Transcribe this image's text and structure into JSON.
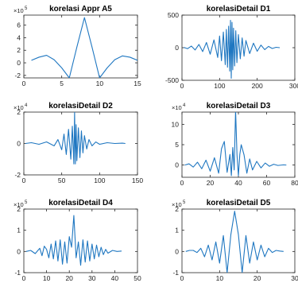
{
  "chart_data": [
    {
      "type": "line",
      "title": "korelasi Appr A5",
      "multiplier": "×10",
      "exponent": "5",
      "xlim": [
        0,
        15
      ],
      "ylim": [
        -2.4,
        7.6
      ],
      "xticks": [
        0,
        5,
        10,
        15
      ],
      "yticks": [
        -2,
        0,
        2,
        4,
        6
      ],
      "series": [
        {
          "x": [
            1,
            2,
            3,
            4,
            5,
            6,
            7,
            8,
            9,
            10,
            11,
            12,
            13,
            14,
            15
          ],
          "y": [
            0.4,
            0.9,
            1.2,
            0.5,
            -0.8,
            -2.4,
            2.5,
            7.2,
            2.5,
            -2.4,
            -0.8,
            0.5,
            1.1,
            0.9,
            0.4
          ]
        }
      ]
    },
    {
      "type": "line",
      "title": "korelasiDetail D1",
      "multiplier": "",
      "exponent": "",
      "xlim": [
        0,
        300
      ],
      "ylim": [
        -500,
        500
      ],
      "xticks": [
        0,
        100,
        200,
        300
      ],
      "yticks": [
        -500,
        0,
        500
      ],
      "series": [
        {
          "x": [
            5,
            15,
            25,
            35,
            45,
            55,
            65,
            75,
            85,
            95,
            100,
            105,
            110,
            115,
            118,
            121,
            124,
            127,
            129,
            131,
            133,
            135,
            137,
            140,
            143,
            146,
            150,
            155,
            160,
            165,
            170,
            180,
            190,
            200,
            210,
            220,
            230,
            240,
            250,
            260
          ],
          "y": [
            5,
            -15,
            25,
            -35,
            50,
            -60,
            80,
            -100,
            120,
            -150,
            180,
            -200,
            240,
            -260,
            280,
            -300,
            330,
            -360,
            420,
            -470,
            390,
            -340,
            300,
            -280,
            260,
            -230,
            200,
            -170,
            150,
            -130,
            110,
            -90,
            70,
            -55,
            40,
            -30,
            20,
            -12,
            6,
            0
          ]
        }
      ]
    },
    {
      "type": "line",
      "title": "korelasiDetail D2",
      "multiplier": "×10",
      "exponent": "4",
      "xlim": [
        0,
        150
      ],
      "ylim": [
        -2,
        2
      ],
      "xticks": [
        0,
        50,
        100,
        150
      ],
      "yticks": [
        -2,
        0,
        2
      ],
      "series": [
        {
          "x": [
            2,
            10,
            20,
            30,
            40,
            45,
            50,
            53,
            56,
            59,
            62,
            64,
            66,
            67,
            68,
            69,
            70,
            72,
            74,
            76,
            78,
            80,
            83,
            86,
            90,
            95,
            100,
            110,
            120,
            130,
            134
          ],
          "y": [
            0,
            0.05,
            -0.05,
            0.1,
            -0.15,
            0.25,
            -0.4,
            0.6,
            -0.7,
            0.9,
            -1.0,
            1.1,
            -1.3,
            2.0,
            -1.3,
            1.2,
            -1.1,
            1.0,
            -0.9,
            0.8,
            -0.6,
            0.5,
            -0.35,
            0.25,
            -0.15,
            0.1,
            -0.05,
            0.05,
            0,
            0.02,
            0
          ]
        }
      ]
    },
    {
      "type": "line",
      "title": "korelasiDetail D3",
      "multiplier": "×10",
      "exponent": "4",
      "xlim": [
        0,
        80
      ],
      "ylim": [
        -3,
        13
      ],
      "xticks": [
        0,
        20,
        40,
        60,
        80
      ],
      "yticks": [
        0,
        5,
        10
      ],
      "series": [
        {
          "x": [
            2,
            5,
            8,
            11,
            14,
            17,
            20,
            23,
            26,
            28,
            30,
            32,
            34,
            35,
            36,
            37,
            38,
            39,
            40,
            41,
            42,
            44,
            46,
            48,
            50,
            53,
            56,
            59,
            62,
            65,
            68,
            72,
            74
          ],
          "y": [
            0,
            0.3,
            -0.5,
            0.7,
            -0.9,
            1.2,
            -1.5,
            1.8,
            -2.0,
            4.0,
            5.8,
            -1.8,
            2.6,
            -2.6,
            4.3,
            -1.2,
            13.5,
            2.5,
            -2.6,
            2.6,
            5.0,
            2.5,
            -2.0,
            1.5,
            -1.2,
            0.9,
            -0.7,
            0.5,
            -0.3,
            0.2,
            -0.1,
            0.05,
            0
          ]
        }
      ]
    },
    {
      "type": "line",
      "title": "korelasiDetail D4",
      "multiplier": "×10",
      "exponent": "5",
      "xlim": [
        0,
        50
      ],
      "ylim": [
        -1,
        2
      ],
      "xticks": [
        0,
        10,
        20,
        30,
        40,
        50
      ],
      "yticks": [
        -1,
        0,
        1,
        2
      ],
      "series": [
        {
          "x": [
            1,
            3,
            5,
            7,
            8,
            9,
            10,
            11,
            12,
            13,
            14,
            15,
            16,
            17,
            18,
            19,
            20,
            21,
            22,
            23,
            24,
            25,
            26,
            27,
            28,
            29,
            30,
            31,
            32,
            33,
            34,
            35,
            36,
            37,
            39,
            41,
            43
          ],
          "y": [
            0,
            0.05,
            -0.1,
            0.15,
            -0.2,
            0.25,
            0.1,
            -0.3,
            0.35,
            -0.35,
            0.5,
            -0.45,
            0.55,
            -0.6,
            0.45,
            -0.55,
            0.7,
            0.2,
            1.7,
            -0.3,
            0.45,
            -0.65,
            0.55,
            -0.5,
            0.5,
            -0.45,
            0.35,
            -0.35,
            0.3,
            -0.25,
            0.2,
            -0.15,
            0.1,
            -0.08,
            0.05,
            0,
            0.02
          ]
        }
      ]
    },
    {
      "type": "line",
      "title": "korelasiDetail D5",
      "multiplier": "×10",
      "exponent": "5",
      "xlim": [
        0,
        30
      ],
      "ylim": [
        -1,
        2
      ],
      "xticks": [
        0,
        10,
        20,
        30
      ],
      "yticks": [
        -1,
        0,
        1,
        2
      ],
      "series": [
        {
          "x": [
            1,
            2,
            3,
            4,
            5,
            6,
            7,
            8,
            9,
            10,
            11,
            12,
            13,
            14,
            15,
            16,
            17,
            18,
            19,
            20,
            21,
            22,
            23,
            24,
            25,
            26,
            27
          ],
          "y": [
            0,
            0.05,
            0.05,
            -0.05,
            0.15,
            -0.25,
            0.3,
            -0.4,
            0.45,
            -0.55,
            0.75,
            -1.0,
            0.8,
            1.9,
            0.8,
            -1.0,
            0.75,
            -0.55,
            0.45,
            -0.4,
            0.3,
            -0.25,
            0.15,
            -0.05,
            0.05,
            0.02,
            0
          ]
        }
      ]
    }
  ],
  "style": {
    "line_color": "#1f77c1",
    "axis_color": "#262626"
  }
}
